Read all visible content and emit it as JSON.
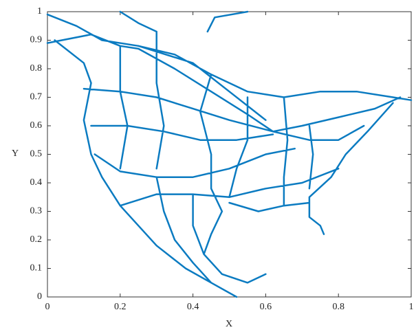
{
  "chart_data": {
    "type": "line",
    "xlabel": "X",
    "ylabel": "Y",
    "color": "#0b7bc1",
    "xlim": [
      0,
      1
    ],
    "ylim": [
      0,
      1
    ],
    "xticks": [
      0,
      0.2,
      0.4,
      0.6,
      0.8,
      1
    ],
    "yticks": [
      0,
      0.1,
      0.2,
      0.3,
      0.4,
      0.5,
      0.6,
      0.7,
      0.8,
      0.9,
      1
    ],
    "x": [
      0.02,
      0.1,
      0.12,
      0.1,
      0.12,
      0.15,
      0.2,
      0.25,
      0.3,
      0.38,
      0.45,
      0.52,
      null,
      0.48,
      0.45,
      0.43,
      0.48,
      0.55,
      0.6,
      null,
      0,
      0.08,
      0.15,
      0.25,
      0.35,
      0.45,
      0.55,
      0.65,
      0.75,
      0.85,
      0.95,
      1,
      null,
      0.2,
      0.25,
      0.3,
      null,
      0.44,
      0.46,
      0.55,
      null,
      0,
      0.12,
      0.2,
      0.25,
      null,
      0.1,
      0.2,
      0.3,
      0.4,
      0.5,
      0.62,
      null,
      0.12,
      0.22,
      0.32,
      0.42,
      0.52,
      0.62,
      null,
      0.13,
      0.2,
      0.3,
      0.4,
      0.5,
      0.6,
      0.68,
      null,
      0.2,
      0.3,
      0.4,
      0.5,
      0.6,
      0.7,
      0.8,
      null,
      0.25,
      0.35,
      0.45,
      0.55,
      0.62,
      null,
      0.25,
      0.4,
      0.5,
      0.6,
      null,
      0.62,
      0.7,
      0.8,
      0.9,
      0.97,
      null,
      0.62,
      0.72,
      0.8,
      0.87,
      null,
      0.95,
      0.88,
      0.82,
      0.78,
      0.72,
      0.72,
      0.75,
      0.76,
      null,
      0.5,
      0.58,
      0.65,
      0.72,
      null,
      0.55,
      0.55,
      0.52,
      0.5,
      null,
      0.65,
      0.66,
      0.65,
      0.65,
      null,
      0.72,
      0.73,
      0.72,
      null,
      0.3,
      0.3,
      0.32,
      0.3,
      null,
      0.2,
      0.2,
      0.22,
      0.2,
      null,
      0.45,
      0.42,
      0.45,
      0.45,
      0.48,
      null,
      0.3,
      0.32,
      0.35,
      0.4,
      0.45,
      null,
      0.4,
      0.4,
      0.43
    ],
    "values": [
      0.9,
      0.82,
      0.75,
      0.62,
      0.5,
      0.42,
      0.32,
      0.25,
      0.18,
      0.1,
      0.05,
      0.0,
      null,
      0.3,
      0.22,
      0.15,
      0.08,
      0.05,
      0.08,
      null,
      0.99,
      0.95,
      0.9,
      0.88,
      0.85,
      0.78,
      0.72,
      0.7,
      0.72,
      0.72,
      0.7,
      0.69,
      null,
      1,
      0.96,
      0.93,
      null,
      0.93,
      0.98,
      1,
      null,
      0.89,
      0.92,
      0.88,
      0.87,
      null,
      0.73,
      0.72,
      0.7,
      0.66,
      0.62,
      0.58,
      null,
      0.6,
      0.6,
      0.58,
      0.55,
      0.55,
      0.57,
      null,
      0.5,
      0.44,
      0.42,
      0.42,
      0.45,
      0.5,
      0.52,
      null,
      0.32,
      0.36,
      0.36,
      0.35,
      0.38,
      0.4,
      0.45,
      null,
      0.87,
      0.8,
      0.72,
      0.64,
      0.58,
      null,
      0.88,
      0.82,
      0.72,
      0.62,
      null,
      0.58,
      0.6,
      0.63,
      0.66,
      0.7,
      null,
      0.58,
      0.55,
      0.55,
      0.6,
      null,
      0.68,
      0.58,
      0.5,
      0.42,
      0.35,
      0.28,
      0.25,
      0.22,
      null,
      0.33,
      0.3,
      0.32,
      0.33,
      null,
      0.7,
      0.55,
      0.45,
      0.35,
      null,
      0.7,
      0.55,
      0.42,
      0.32,
      null,
      0.6,
      0.5,
      0.38,
      null,
      0.93,
      0.75,
      0.6,
      0.45,
      null,
      0.88,
      0.72,
      0.6,
      0.45,
      null,
      0.78,
      0.65,
      0.5,
      0.38,
      0.3,
      null,
      0.42,
      0.3,
      0.2,
      0.12,
      0.05,
      null,
      0.36,
      0.25,
      0.15
    ]
  }
}
